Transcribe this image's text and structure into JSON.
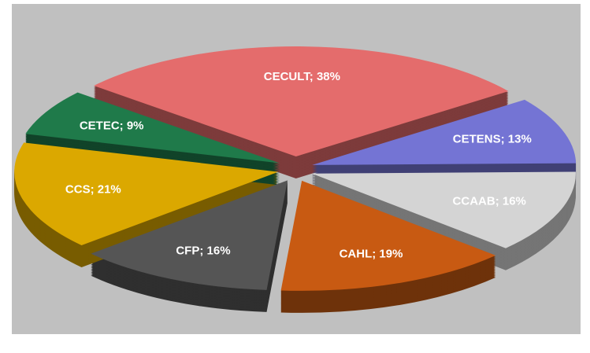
{
  "chart_data": {
    "type": "pie",
    "values": [
      38,
      13,
      16,
      19,
      16,
      21,
      9
    ],
    "value_labels": [
      "CECULT; 38%",
      "CETENS; 13%",
      "CCAAB; 16%",
      "CAHL; 19%",
      "CFP; 16%",
      "CCS; 21%",
      "CETEC; 9%"
    ],
    "colors": [
      "#e46c6c",
      "#7474d4",
      "#d4d4d4",
      "#c85a12",
      "#555555",
      "#dba800",
      "#1f7a4a"
    ]
  }
}
